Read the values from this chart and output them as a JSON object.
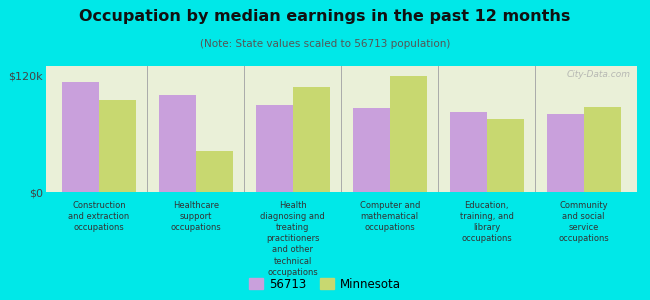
{
  "title": "Occupation by median earnings in the past 12 months",
  "subtitle": "(Note: State values scaled to 56713 population)",
  "background_color": "#00e8e8",
  "plot_background_color": "#eaf0d8",
  "categories": [
    "Construction\nand extraction\noccupations",
    "Healthcare\nsupport\noccupations",
    "Health\ndiagnosing and\ntreating\npractitioners\nand other\ntechnical\noccupations",
    "Computer and\nmathematical\noccupations",
    "Education,\ntraining, and\nlibrary\noccupations",
    "Community\nand social\nservice\noccupations"
  ],
  "values_56713": [
    113000,
    100000,
    90000,
    87000,
    83000,
    80000
  ],
  "values_minnesota": [
    95000,
    42000,
    108000,
    120000,
    75000,
    88000
  ],
  "color_56713": "#c9a0dc",
  "color_minnesota": "#c8d870",
  "ylim": [
    0,
    130000
  ],
  "yticks": [
    0,
    120000
  ],
  "ytick_labels": [
    "$0",
    "$120k"
  ],
  "legend_label_56713": "56713",
  "legend_label_minnesota": "Minnesota",
  "watermark": "City-Data.com"
}
